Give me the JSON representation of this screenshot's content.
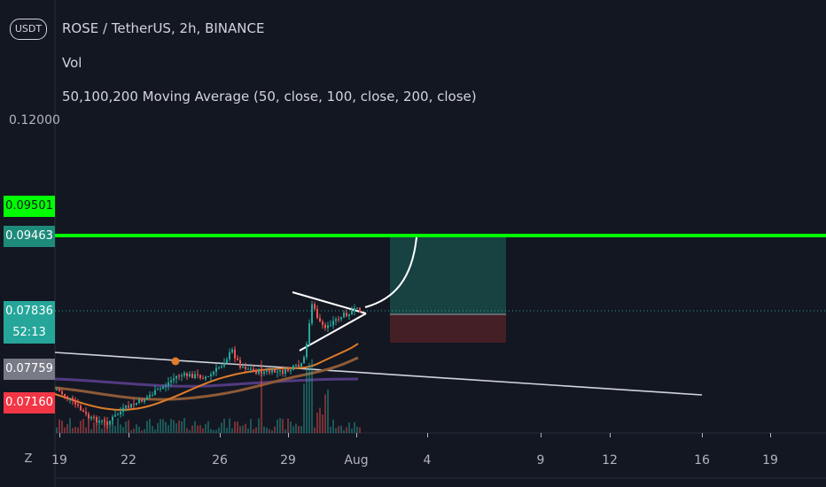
{
  "header": {
    "symbol_line": "ROSE / TetherUS, 2h, BINANCE",
    "vol_label": "Vol",
    "ma_label": "50,100,200 Moving Average (50, close, 100, close, 200, close)",
    "currency_button": "USDT",
    "zoom_button": "Z"
  },
  "price_axis": {
    "tick": "0.12000",
    "tags": {
      "target": "0.09501",
      "resistance": "0.09463",
      "last_price": "0.07836",
      "countdown": "52:13",
      "entry": "0.07759",
      "stop": "0.07160"
    }
  },
  "time_axis": {
    "labels": [
      "19",
      "22",
      "26",
      "29",
      "Aug",
      "4",
      "9",
      "12",
      "16",
      "19"
    ]
  },
  "colors": {
    "background": "#131722",
    "resistance_line": "#00ff00",
    "target_tag": "#00ff00",
    "resistance_tag": "#1e8a7a",
    "last_price_tag": "#26a69a",
    "entry_tag": "#787b86",
    "stop_tag": "#f23645",
    "candle_up": "#26a69a",
    "candle_down": "#ef5350",
    "ma50": "#e07c2a",
    "ma100": "#8d5a36",
    "ma200": "#5b3e8c",
    "profit_zone": "#1a4a48",
    "loss_zone": "#4a2026"
  },
  "chart_data": {
    "type": "candlestick",
    "symbol": "ROSE / TetherUS",
    "interval": "2h",
    "exchange": "BINANCE",
    "x_labels": [
      "19",
      "22",
      "26",
      "29",
      "Aug",
      "4",
      "9",
      "12",
      "16",
      "19"
    ],
    "y_tick": 0.12,
    "levels": {
      "take_profit": 0.09501,
      "resistance": 0.09463,
      "last_price": 0.07836,
      "entry": 0.07759,
      "stop_loss": 0.0716
    },
    "indicators": [
      "Vol",
      "50,100,200 Moving Average (50, close, 100, close, 200, close)"
    ]
  }
}
